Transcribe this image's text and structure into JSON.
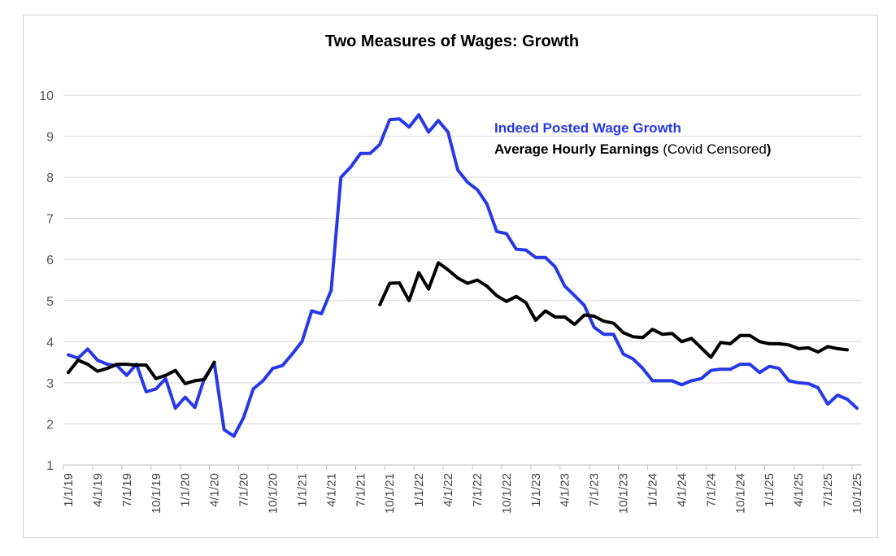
{
  "chart_data": {
    "type": "line",
    "title": "Two Measures of Wages: Growth",
    "xlabel": "",
    "ylabel": "",
    "ylim": [
      1,
      10
    ],
    "yticks": [
      1,
      2,
      3,
      4,
      5,
      6,
      7,
      8,
      9,
      10
    ],
    "x_months": 82,
    "xtick_labels": [
      "1/1/19",
      "4/1/19",
      "7/1/19",
      "10/1/19",
      "1/1/20",
      "4/1/20",
      "7/1/20",
      "10/1/20",
      "1/1/21",
      "4/1/21",
      "7/1/21",
      "10/1/21",
      "1/1/22",
      "4/1/22",
      "7/1/22",
      "10/1/22",
      "1/1/23",
      "4/1/23",
      "7/1/23",
      "10/1/23",
      "1/1/24",
      "4/1/24",
      "7/1/24",
      "10/1/24",
      "1/1/25",
      "4/1/25",
      "7/1/25",
      "10/1/25"
    ],
    "grid": "horizontal",
    "legend": {
      "line1": "Indeed Posted Wage Growth",
      "line2_bold": "Average Hourly Earnings",
      "line2_normal": " (Covid Censored",
      "line2_close": ")",
      "position": "top-right"
    },
    "series": [
      {
        "name": "Indeed Posted Wage Growth",
        "color": "#2638e8",
        "start_index": 0,
        "values": [
          3.68,
          3.6,
          3.82,
          3.55,
          3.45,
          3.42,
          3.18,
          3.45,
          2.78,
          2.85,
          3.1,
          2.38,
          2.65,
          2.4,
          3.12,
          3.48,
          1.86,
          1.7,
          2.15,
          2.85,
          3.05,
          3.35,
          3.42,
          3.7,
          4.0,
          4.75,
          4.68,
          5.25,
          8.0,
          8.25,
          8.58,
          8.58,
          8.8,
          9.4,
          9.42,
          9.22,
          9.52,
          9.1,
          9.38,
          9.1,
          8.18,
          7.88,
          7.7,
          7.35,
          6.68,
          6.63,
          6.25,
          6.23,
          6.05,
          6.05,
          5.82,
          5.35,
          5.12,
          4.88,
          4.35,
          4.18,
          4.18,
          3.7,
          3.58,
          3.35,
          3.05,
          3.05,
          3.05,
          2.95,
          3.05,
          3.1,
          3.3,
          3.33,
          3.33,
          3.45,
          3.45,
          3.25,
          3.4,
          3.35,
          3.05,
          3.0,
          2.98,
          2.88,
          2.48,
          2.7,
          2.6,
          2.38
        ]
      },
      {
        "name": "Average Hourly Earnings (Covid Censored)",
        "color": "#000000",
        "segments": [
          {
            "start_index": 0,
            "values": [
              3.25,
              3.55,
              3.45,
              3.28,
              3.35,
              3.45,
              3.45,
              3.43,
              3.43,
              3.1,
              3.18,
              3.3,
              2.98,
              3.05,
              3.08,
              3.5
            ]
          },
          {
            "start_index": 32,
            "values": [
              4.9,
              5.42,
              5.43,
              5.0,
              5.68,
              5.28,
              5.92,
              5.75,
              5.55,
              5.42,
              5.5,
              5.35,
              5.12,
              4.98,
              5.1,
              4.95,
              4.52,
              4.75,
              4.6,
              4.6,
              4.42,
              4.65,
              4.62,
              4.5,
              4.45,
              4.22,
              4.12,
              4.1,
              4.3,
              4.18,
              4.2,
              4.0,
              4.08,
              3.85,
              3.62,
              3.98,
              3.95,
              4.15,
              4.15,
              4.0,
              3.95,
              3.95,
              3.92,
              3.83,
              3.85,
              3.75,
              3.88,
              3.83,
              3.8
            ]
          }
        ]
      }
    ]
  }
}
